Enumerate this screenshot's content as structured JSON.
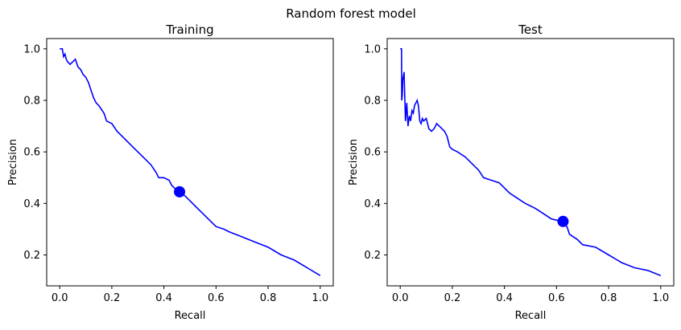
{
  "figure": {
    "suptitle": "Random forest model",
    "line_color": "#0000ff"
  },
  "chart_data": [
    {
      "type": "line",
      "title": "Training",
      "xlabel": "Recall",
      "ylabel": "Precision",
      "xlim": [
        -0.05,
        1.05
      ],
      "ylim": [
        0.08,
        1.04
      ],
      "xticks": [
        0.0,
        0.2,
        0.4,
        0.6,
        0.8,
        1.0
      ],
      "yticks": [
        0.2,
        0.4,
        0.6,
        0.8,
        1.0
      ],
      "grid": false,
      "series": [
        {
          "x": [
            0.0,
            0.01,
            0.015,
            0.02,
            0.025,
            0.03,
            0.04,
            0.05,
            0.06,
            0.07,
            0.08,
            0.09,
            0.1,
            0.11,
            0.12,
            0.13,
            0.14,
            0.15,
            0.17,
            0.18,
            0.2,
            0.22,
            0.25,
            0.28,
            0.3,
            0.33,
            0.35,
            0.37,
            0.38,
            0.4,
            0.42,
            0.43,
            0.44,
            0.45,
            0.46,
            0.48,
            0.5,
            0.53,
            0.55,
            0.58,
            0.6,
            0.63,
            0.65,
            0.7,
            0.75,
            0.8,
            0.85,
            0.9,
            0.95,
            1.0
          ],
          "y": [
            1.0,
            1.0,
            0.97,
            0.98,
            0.96,
            0.95,
            0.94,
            0.95,
            0.96,
            0.93,
            0.92,
            0.9,
            0.89,
            0.87,
            0.84,
            0.81,
            0.79,
            0.78,
            0.75,
            0.72,
            0.71,
            0.68,
            0.65,
            0.62,
            0.6,
            0.57,
            0.55,
            0.52,
            0.5,
            0.5,
            0.49,
            0.47,
            0.46,
            0.45,
            0.445,
            0.43,
            0.41,
            0.38,
            0.36,
            0.33,
            0.31,
            0.3,
            0.29,
            0.27,
            0.25,
            0.23,
            0.2,
            0.18,
            0.15,
            0.12
          ]
        }
      ],
      "marker": {
        "x": 0.46,
        "y": 0.445
      }
    },
    {
      "type": "line",
      "title": "Test",
      "xlabel": "Recall",
      "ylabel": "Precision",
      "xlim": [
        -0.05,
        1.05
      ],
      "ylim": [
        0.08,
        1.04
      ],
      "xticks": [
        0.0,
        0.2,
        0.4,
        0.6,
        0.8,
        1.0
      ],
      "yticks": [
        0.2,
        0.4,
        0.6,
        0.8,
        1.0
      ],
      "grid": false,
      "series": [
        {
          "x": [
            0.0,
            0.005,
            0.006,
            0.008,
            0.01,
            0.015,
            0.02,
            0.025,
            0.03,
            0.035,
            0.04,
            0.045,
            0.05,
            0.055,
            0.06,
            0.065,
            0.07,
            0.075,
            0.08,
            0.085,
            0.09,
            0.1,
            0.11,
            0.12,
            0.13,
            0.14,
            0.15,
            0.16,
            0.17,
            0.18,
            0.19,
            0.2,
            0.22,
            0.25,
            0.28,
            0.3,
            0.32,
            0.35,
            0.38,
            0.4,
            0.42,
            0.45,
            0.48,
            0.5,
            0.52,
            0.55,
            0.58,
            0.6,
            0.62,
            0.64,
            0.65,
            0.68,
            0.7,
            0.75,
            0.8,
            0.85,
            0.9,
            0.95,
            1.0
          ],
          "y": [
            1.0,
            1.0,
            0.8,
            0.82,
            0.88,
            0.91,
            0.72,
            0.79,
            0.7,
            0.74,
            0.72,
            0.76,
            0.75,
            0.78,
            0.79,
            0.8,
            0.78,
            0.72,
            0.71,
            0.73,
            0.72,
            0.73,
            0.69,
            0.68,
            0.69,
            0.71,
            0.7,
            0.69,
            0.68,
            0.66,
            0.62,
            0.61,
            0.6,
            0.58,
            0.55,
            0.53,
            0.5,
            0.49,
            0.48,
            0.46,
            0.44,
            0.42,
            0.4,
            0.39,
            0.38,
            0.36,
            0.34,
            0.335,
            0.33,
            0.31,
            0.28,
            0.26,
            0.24,
            0.23,
            0.2,
            0.17,
            0.15,
            0.14,
            0.12
          ]
        }
      ],
      "marker": {
        "x": 0.625,
        "y": 0.33
      }
    }
  ]
}
